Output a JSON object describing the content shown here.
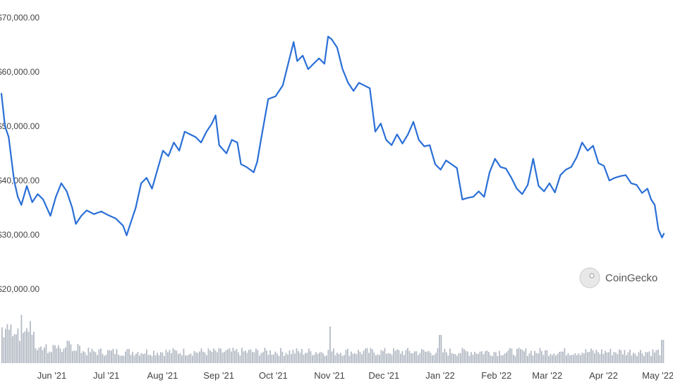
{
  "chart_data": {
    "type": "line",
    "title": "",
    "xlabel": "",
    "ylabel": "",
    "ylim": [
      15000,
      70000
    ],
    "y_ticks": [
      "$70,000.00",
      "$60,000.00",
      "$50,000.00",
      "$40,000.00",
      "$30,000.00",
      "$20,000.00"
    ],
    "y_tick_values": [
      70000,
      60000,
      50000,
      40000,
      30000,
      20000
    ],
    "x_ticks": [
      "Jun '21",
      "Jul '21",
      "Aug '21",
      "Sep '21",
      "Oct '21",
      "Nov '21",
      "Dec '21",
      "Jan '22",
      "Feb '22",
      "Mar '22",
      "Apr '22",
      "May '22"
    ],
    "x_tick_dates": [
      "2021-06-01",
      "2021-07-01",
      "2021-08-01",
      "2021-09-01",
      "2021-10-01",
      "2021-11-01",
      "2021-12-01",
      "2022-01-01",
      "2022-02-01",
      "2022-03-01",
      "2022-04-01",
      "2022-05-01"
    ],
    "x_range": [
      "2021-05-12",
      "2022-05-12"
    ],
    "grid": false,
    "line_color": "#2a6fd6",
    "volume_color": "#9aa3b0",
    "series": [
      {
        "points": [
          [
            "2021-05-12",
            56000
          ],
          [
            "2021-05-14",
            50000
          ],
          [
            "2021-05-16",
            48000
          ],
          [
            "2021-05-19",
            40000
          ],
          [
            "2021-05-21",
            37000
          ],
          [
            "2021-05-23",
            35500
          ],
          [
            "2021-05-26",
            39000
          ],
          [
            "2021-05-29",
            36000
          ],
          [
            "2021-06-01",
            37500
          ],
          [
            "2021-06-04",
            36500
          ],
          [
            "2021-06-08",
            33500
          ],
          [
            "2021-06-11",
            37000
          ],
          [
            "2021-06-14",
            39500
          ],
          [
            "2021-06-17",
            38000
          ],
          [
            "2021-06-20",
            35000
          ],
          [
            "2021-06-22",
            32000
          ],
          [
            "2021-06-25",
            33500
          ],
          [
            "2021-06-28",
            34500
          ],
          [
            "2021-07-02",
            33800
          ],
          [
            "2021-07-06",
            34300
          ],
          [
            "2021-07-10",
            33600
          ],
          [
            "2021-07-14",
            33000
          ],
          [
            "2021-07-18",
            31700
          ],
          [
            "2021-07-20",
            29900
          ],
          [
            "2021-07-22",
            32000
          ],
          [
            "2021-07-25",
            35000
          ],
          [
            "2021-07-28",
            39500
          ],
          [
            "2021-07-31",
            40500
          ],
          [
            "2021-08-03",
            38500
          ],
          [
            "2021-08-06",
            42000
          ],
          [
            "2021-08-09",
            45500
          ],
          [
            "2021-08-12",
            44500
          ],
          [
            "2021-08-15",
            47000
          ],
          [
            "2021-08-18",
            45500
          ],
          [
            "2021-08-21",
            49000
          ],
          [
            "2021-08-24",
            48500
          ],
          [
            "2021-08-27",
            48000
          ],
          [
            "2021-08-30",
            47000
          ],
          [
            "2021-09-02",
            49000
          ],
          [
            "2021-09-05",
            50500
          ],
          [
            "2021-09-07",
            52000
          ],
          [
            "2021-09-09",
            46500
          ],
          [
            "2021-09-13",
            45000
          ],
          [
            "2021-09-16",
            47500
          ],
          [
            "2021-09-19",
            47000
          ],
          [
            "2021-09-21",
            43000
          ],
          [
            "2021-09-24",
            42500
          ],
          [
            "2021-09-28",
            41500
          ],
          [
            "2021-09-30",
            43500
          ],
          [
            "2021-10-02",
            47500
          ],
          [
            "2021-10-06",
            55000
          ],
          [
            "2021-10-10",
            55500
          ],
          [
            "2021-10-14",
            57500
          ],
          [
            "2021-10-17",
            61500
          ],
          [
            "2021-10-20",
            65500
          ],
          [
            "2021-10-22",
            62000
          ],
          [
            "2021-10-25",
            63000
          ],
          [
            "2021-10-28",
            60500
          ],
          [
            "2021-10-31",
            61500
          ],
          [
            "2021-11-03",
            62500
          ],
          [
            "2021-11-06",
            61500
          ],
          [
            "2021-11-08",
            66500
          ],
          [
            "2021-11-10",
            66000
          ],
          [
            "2021-11-13",
            64500
          ],
          [
            "2021-11-16",
            60500
          ],
          [
            "2021-11-19",
            58000
          ],
          [
            "2021-11-22",
            56500
          ],
          [
            "2021-11-25",
            58000
          ],
          [
            "2021-11-28",
            57500
          ],
          [
            "2021-12-01",
            57000
          ],
          [
            "2021-12-04",
            49000
          ],
          [
            "2021-12-07",
            50500
          ],
          [
            "2021-12-10",
            47500
          ],
          [
            "2021-12-13",
            46500
          ],
          [
            "2021-12-16",
            48500
          ],
          [
            "2021-12-19",
            46800
          ],
          [
            "2021-12-22",
            48500
          ],
          [
            "2021-12-25",
            50800
          ],
          [
            "2021-12-28",
            47500
          ],
          [
            "2021-12-31",
            46300
          ],
          [
            "2022-01-03",
            46500
          ],
          [
            "2022-01-06",
            43000
          ],
          [
            "2022-01-09",
            42000
          ],
          [
            "2022-01-12",
            43700
          ],
          [
            "2022-01-15",
            43000
          ],
          [
            "2022-01-18",
            42300
          ],
          [
            "2022-01-21",
            36500
          ],
          [
            "2022-01-24",
            36800
          ],
          [
            "2022-01-27",
            37000
          ],
          [
            "2022-01-30",
            38000
          ],
          [
            "2022-02-02",
            37000
          ],
          [
            "2022-02-05",
            41500
          ],
          [
            "2022-02-08",
            44000
          ],
          [
            "2022-02-11",
            42500
          ],
          [
            "2022-02-14",
            42200
          ],
          [
            "2022-02-17",
            40500
          ],
          [
            "2022-02-20",
            38500
          ],
          [
            "2022-02-23",
            37500
          ],
          [
            "2022-02-26",
            39200
          ],
          [
            "2022-03-01",
            44000
          ],
          [
            "2022-03-04",
            39000
          ],
          [
            "2022-03-07",
            38000
          ],
          [
            "2022-03-10",
            39500
          ],
          [
            "2022-03-13",
            37800
          ],
          [
            "2022-03-16",
            41000
          ],
          [
            "2022-03-19",
            42000
          ],
          [
            "2022-03-22",
            42500
          ],
          [
            "2022-03-25",
            44300
          ],
          [
            "2022-03-28",
            47000
          ],
          [
            "2022-03-31",
            45500
          ],
          [
            "2022-04-03",
            46400
          ],
          [
            "2022-04-06",
            43200
          ],
          [
            "2022-04-09",
            42700
          ],
          [
            "2022-04-12",
            40000
          ],
          [
            "2022-04-15",
            40500
          ],
          [
            "2022-04-18",
            40800
          ],
          [
            "2022-04-21",
            41000
          ],
          [
            "2022-04-24",
            39500
          ],
          [
            "2022-04-27",
            39200
          ],
          [
            "2022-04-30",
            37700
          ],
          [
            "2022-05-03",
            38500
          ],
          [
            "2022-05-05",
            36500
          ],
          [
            "2022-05-07",
            35500
          ],
          [
            "2022-05-09",
            31000
          ],
          [
            "2022-05-11",
            29500
          ],
          [
            "2022-05-12",
            30200
          ]
        ]
      }
    ],
    "watermark": "CoinGecko"
  }
}
